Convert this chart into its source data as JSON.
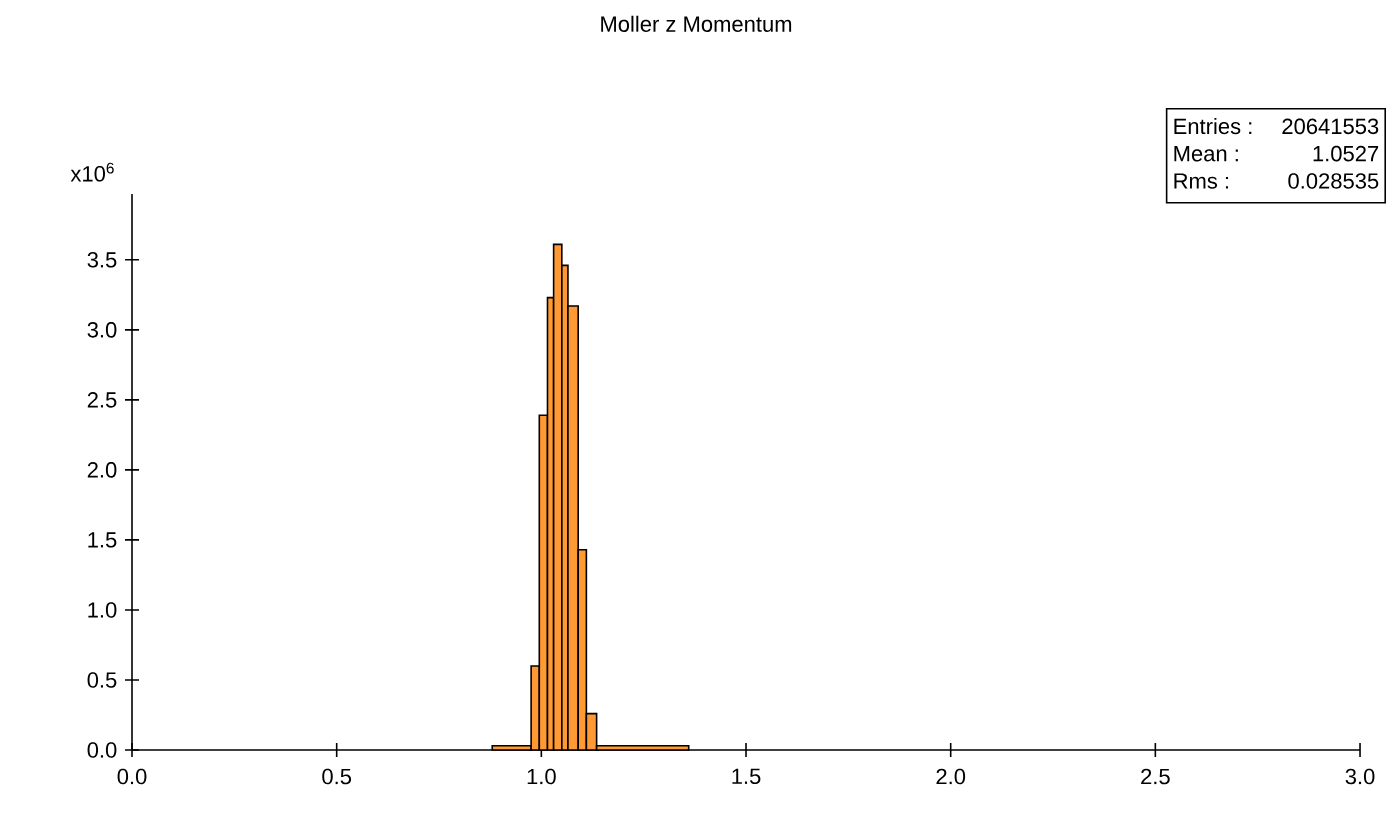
{
  "chart_data": {
    "type": "histogram",
    "title": "Moller z Momentum",
    "ylabel": "x10$^{6}$",
    "annotations": [
      "Entries :",
      "20641553",
      "Mean :",
      "1.0527",
      "Rms :",
      "0.028535"
    ],
    "bins": [
      0.88,
      0.975,
      0.995,
      1.015,
      1.03,
      1.05,
      1.065,
      1.09,
      1.11,
      1.135,
      1.36
    ],
    "values": [
      0.03,
      0.6,
      2.39,
      3.23,
      3.61,
      3.46,
      3.17,
      1.43,
      0.26,
      0.03
    ],
    "color": "#ff9933",
    "xlim": [
      0,
      3.0
    ],
    "ylim": [
      0,
      3.97
    ],
    "xticks": [
      {
        "value": 0,
        "label": "0.0"
      },
      {
        "value": 0.5,
        "label": "0.5"
      },
      {
        "value": 1,
        "label": "1.0"
      },
      {
        "value": 1.5,
        "label": "1.5"
      },
      {
        "value": 2,
        "label": "2.0"
      },
      {
        "value": 2.5,
        "label": "2.5"
      },
      {
        "value": 3,
        "label": "3.0"
      }
    ],
    "yticks": [
      {
        "value": 0,
        "label": "0.0"
      },
      {
        "value": 0.5,
        "label": "0.5"
      },
      {
        "value": 1,
        "label": "1.0"
      },
      {
        "value": 1.5,
        "label": "1.5"
      },
      {
        "value": 2,
        "label": "2.0"
      },
      {
        "value": 2.5,
        "label": "2.5"
      },
      {
        "value": 3,
        "label": "3.0"
      },
      {
        "value": 3.5,
        "label": "3.5"
      }
    ]
  }
}
